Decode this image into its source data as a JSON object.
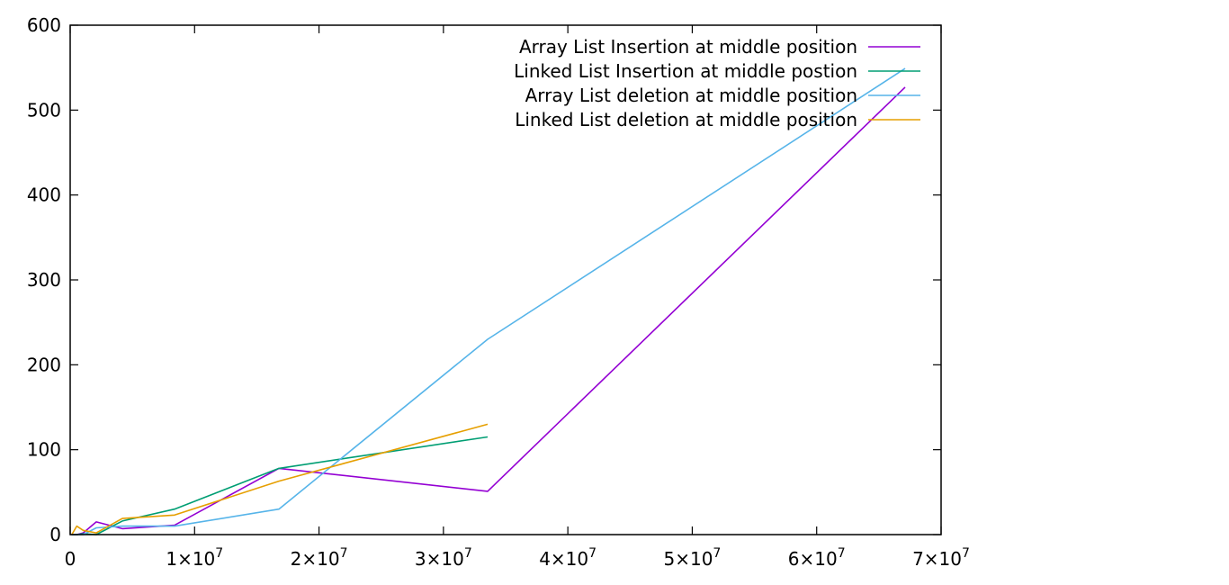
{
  "chart_data": {
    "type": "line",
    "title": "",
    "xlabel": "",
    "ylabel": "",
    "xlim": [
      0,
      70000000
    ],
    "ylim": [
      0,
      600
    ],
    "grid": false,
    "legend_position": "top-right",
    "x_ticks": [
      {
        "value": 0,
        "mantissa": "0",
        "exp": ""
      },
      {
        "value": 10000000,
        "mantissa": "1×10",
        "exp": "7"
      },
      {
        "value": 20000000,
        "mantissa": "2×10",
        "exp": "7"
      },
      {
        "value": 30000000,
        "mantissa": "3×10",
        "exp": "7"
      },
      {
        "value": 40000000,
        "mantissa": "4×10",
        "exp": "7"
      },
      {
        "value": 50000000,
        "mantissa": "5×10",
        "exp": "7"
      },
      {
        "value": 60000000,
        "mantissa": "6×10",
        "exp": "7"
      },
      {
        "value": 70000000,
        "mantissa": "7×10",
        "exp": "7"
      }
    ],
    "y_ticks": [
      0,
      100,
      200,
      300,
      400,
      500,
      600
    ],
    "series": [
      {
        "name": "Array List Insertion at middle position",
        "color": "#9400d3",
        "x": [
          131072,
          524288,
          1048576,
          2097152,
          4194304,
          8388608,
          16777216,
          33554432,
          67108864
        ],
        "y": [
          0,
          0,
          2,
          15,
          7,
          11,
          78,
          51,
          527
        ]
      },
      {
        "name": "Linked List Insertion at middle postion",
        "color": "#009e73",
        "x": [
          131072,
          524288,
          1048576,
          2097152,
          4194304,
          8388608,
          16777216,
          33554432
        ],
        "y": [
          0,
          0,
          1,
          0,
          16,
          30,
          78,
          115
        ]
      },
      {
        "name": "Array List deletion at middle position",
        "color": "#56b4e9",
        "x": [
          131072,
          524288,
          1048576,
          2097152,
          4194304,
          8388608,
          16777216,
          33554432,
          67108864
        ],
        "y": [
          0,
          0,
          0,
          8,
          10,
          10,
          30,
          230,
          549
        ]
      },
      {
        "name": "Linked List deletion at middle position",
        "color": "#e69f00",
        "x": [
          131072,
          524288,
          1048576,
          2097152,
          4194304,
          8388608,
          16777216,
          33554432
        ],
        "y": [
          0,
          10,
          5,
          2,
          19,
          23,
          63,
          130
        ]
      }
    ]
  }
}
